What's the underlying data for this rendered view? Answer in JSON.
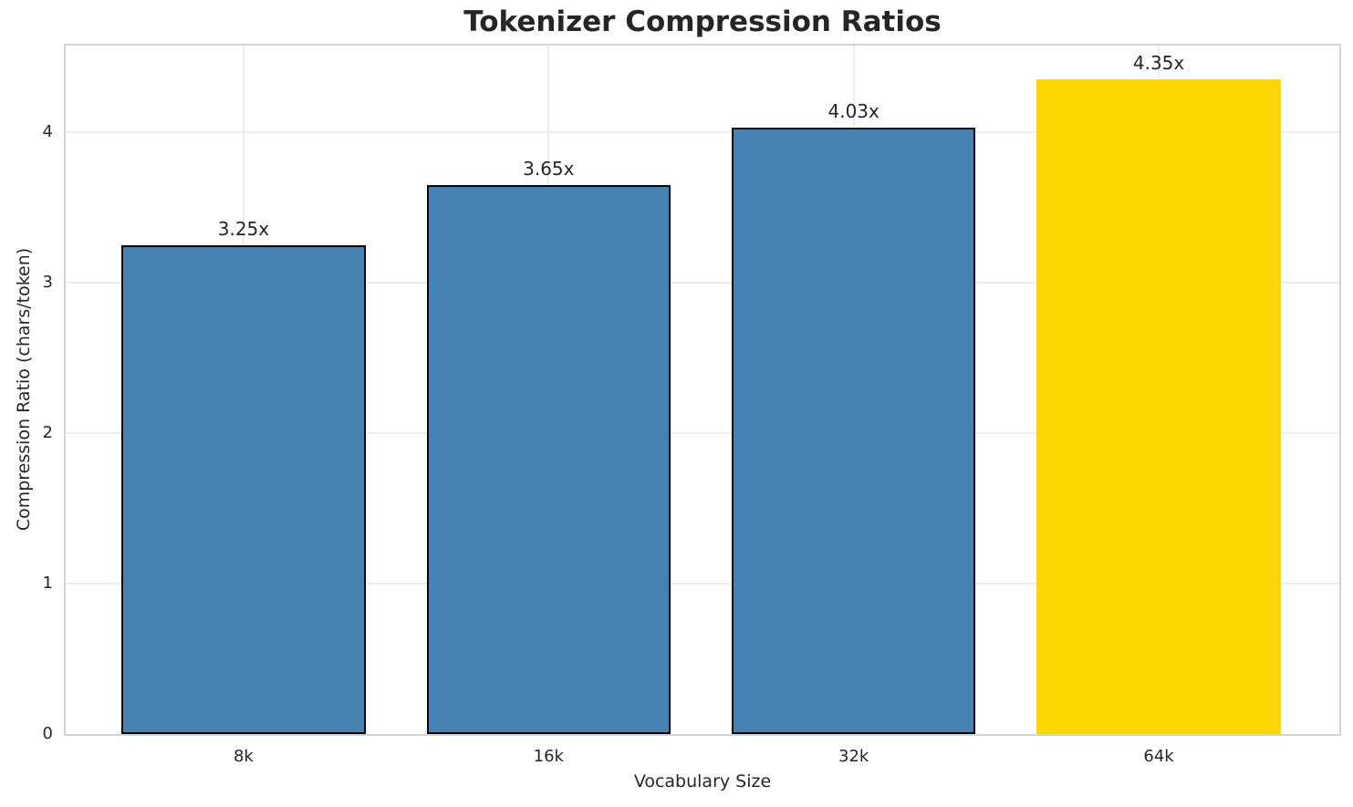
{
  "chart_data": {
    "type": "bar",
    "title": "Tokenizer Compression Ratios",
    "xlabel": "Vocabulary Size",
    "ylabel": "Compression Ratio (chars/token)",
    "categories": [
      "8k",
      "16k",
      "32k",
      "64k"
    ],
    "values": [
      3.25,
      3.65,
      4.03,
      4.35
    ],
    "bar_labels": [
      "3.25x",
      "3.65x",
      "4.03x",
      "4.35x"
    ],
    "bar_colors": [
      "#4682B4",
      "#4682B4",
      "#4682B4",
      "#FFD700"
    ],
    "bar_edge_colors": [
      "#000000",
      "#000000",
      "#000000",
      "none"
    ],
    "highlight_category": "64k",
    "yticks": [
      0,
      1,
      2,
      3,
      4
    ],
    "ylim": [
      0,
      4.576
    ],
    "xlim": [
      -0.583,
      3.592
    ],
    "bar_width": 0.8,
    "grid": "on",
    "legend": "none"
  },
  "style": {
    "background": "#FFFFFF",
    "grid_color": "#ECECEC",
    "spine_color": "#D3D3D3",
    "text_color": "#262626",
    "title_color": "#262626"
  }
}
